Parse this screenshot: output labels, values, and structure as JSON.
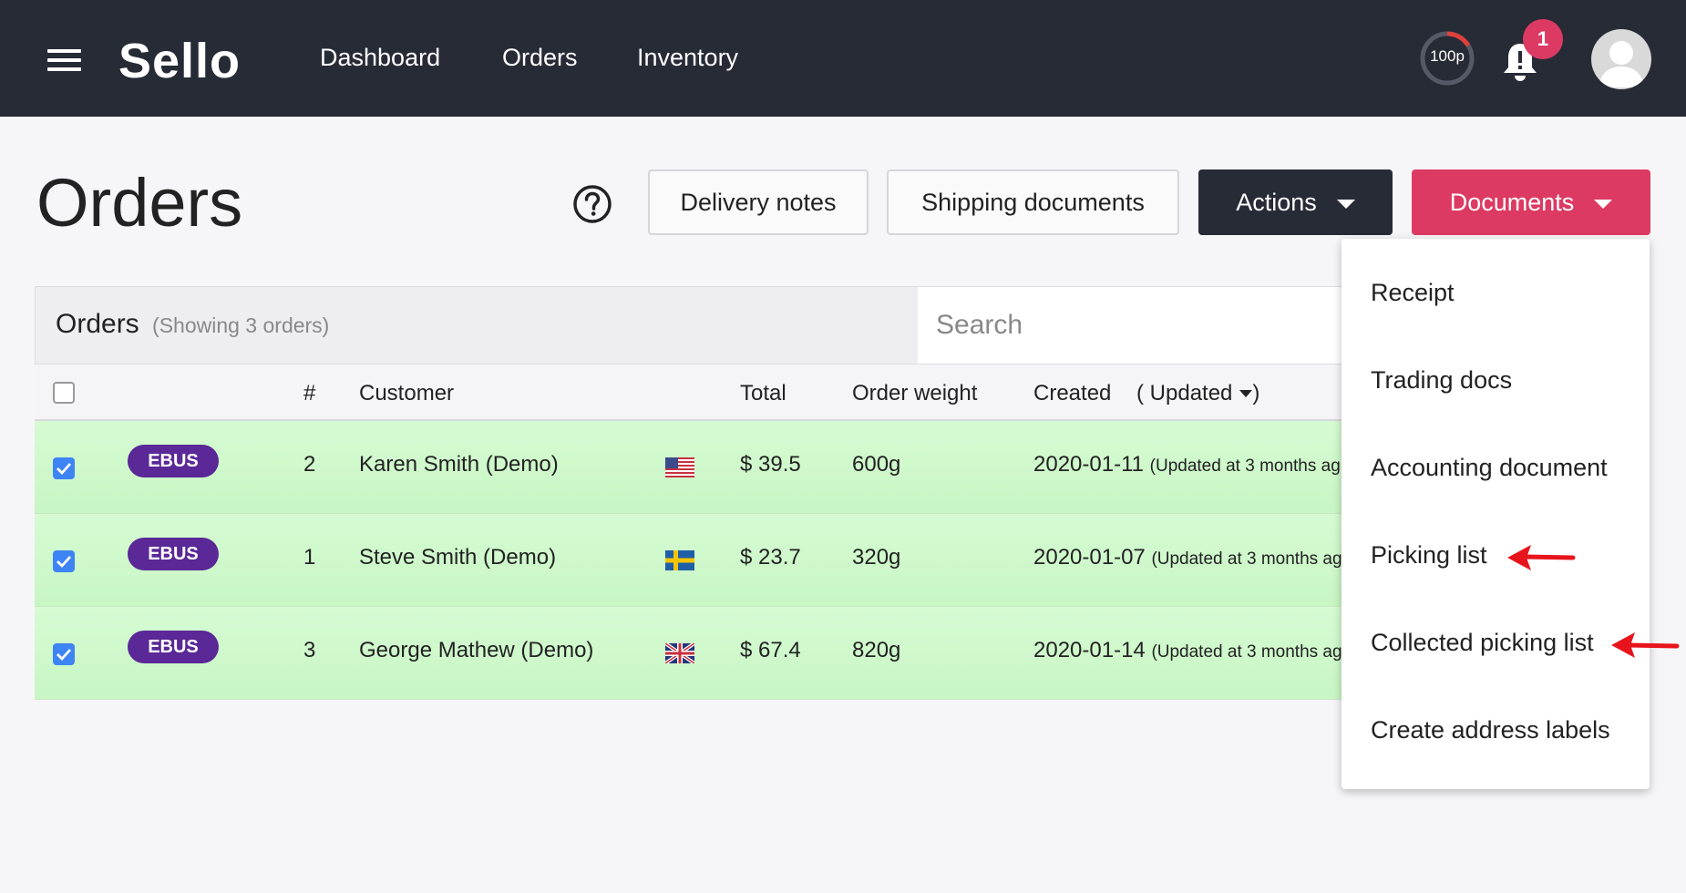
{
  "header": {
    "logo": "Sello",
    "nav": [
      "Dashboard",
      "Orders",
      "Inventory"
    ],
    "credits": "100p",
    "notification_count": "1"
  },
  "page": {
    "title": "Orders",
    "buttons": {
      "delivery_notes": "Delivery notes",
      "shipping_documents": "Shipping documents",
      "actions": "Actions",
      "documents": "Documents"
    }
  },
  "panel": {
    "title": "Orders",
    "subtitle": "(Showing 3 orders)",
    "search_placeholder": "Search"
  },
  "table": {
    "columns": {
      "number": "#",
      "customer": "Customer",
      "total": "Total",
      "weight": "Order weight",
      "created": "Created",
      "updated": "( Updated"
    },
    "rows": [
      {
        "badge": "EBUS",
        "number": "2",
        "customer": "Karen Smith (Demo)",
        "flag": "us-flag-icon",
        "total": "$ 39.5",
        "weight": "600g",
        "created": "2020-01-11",
        "updated": "(Updated at 3 months ag"
      },
      {
        "badge": "EBUS",
        "number": "1",
        "customer": "Steve Smith (Demo)",
        "flag": "se-flag-icon",
        "total": "$ 23.7",
        "weight": "320g",
        "created": "2020-01-07",
        "updated": "(Updated at 3 months ag"
      },
      {
        "badge": "EBUS",
        "number": "3",
        "customer": "George Mathew (Demo)",
        "flag": "gb-flag-icon",
        "total": "$ 67.4",
        "weight": "820g",
        "created": "2020-01-14",
        "updated": "(Updated at 3 months ag"
      }
    ]
  },
  "documents_menu": {
    "items": [
      "Receipt",
      "Trading docs",
      "Accounting document",
      "Picking list",
      "Collected picking list",
      "Create address labels"
    ]
  },
  "colors": {
    "topbar": "#272b36",
    "accent": "#dc3a63",
    "badge": "#5a2897",
    "row_selected": "#c8f6c4",
    "annotation_arrow": "#e8141c"
  }
}
